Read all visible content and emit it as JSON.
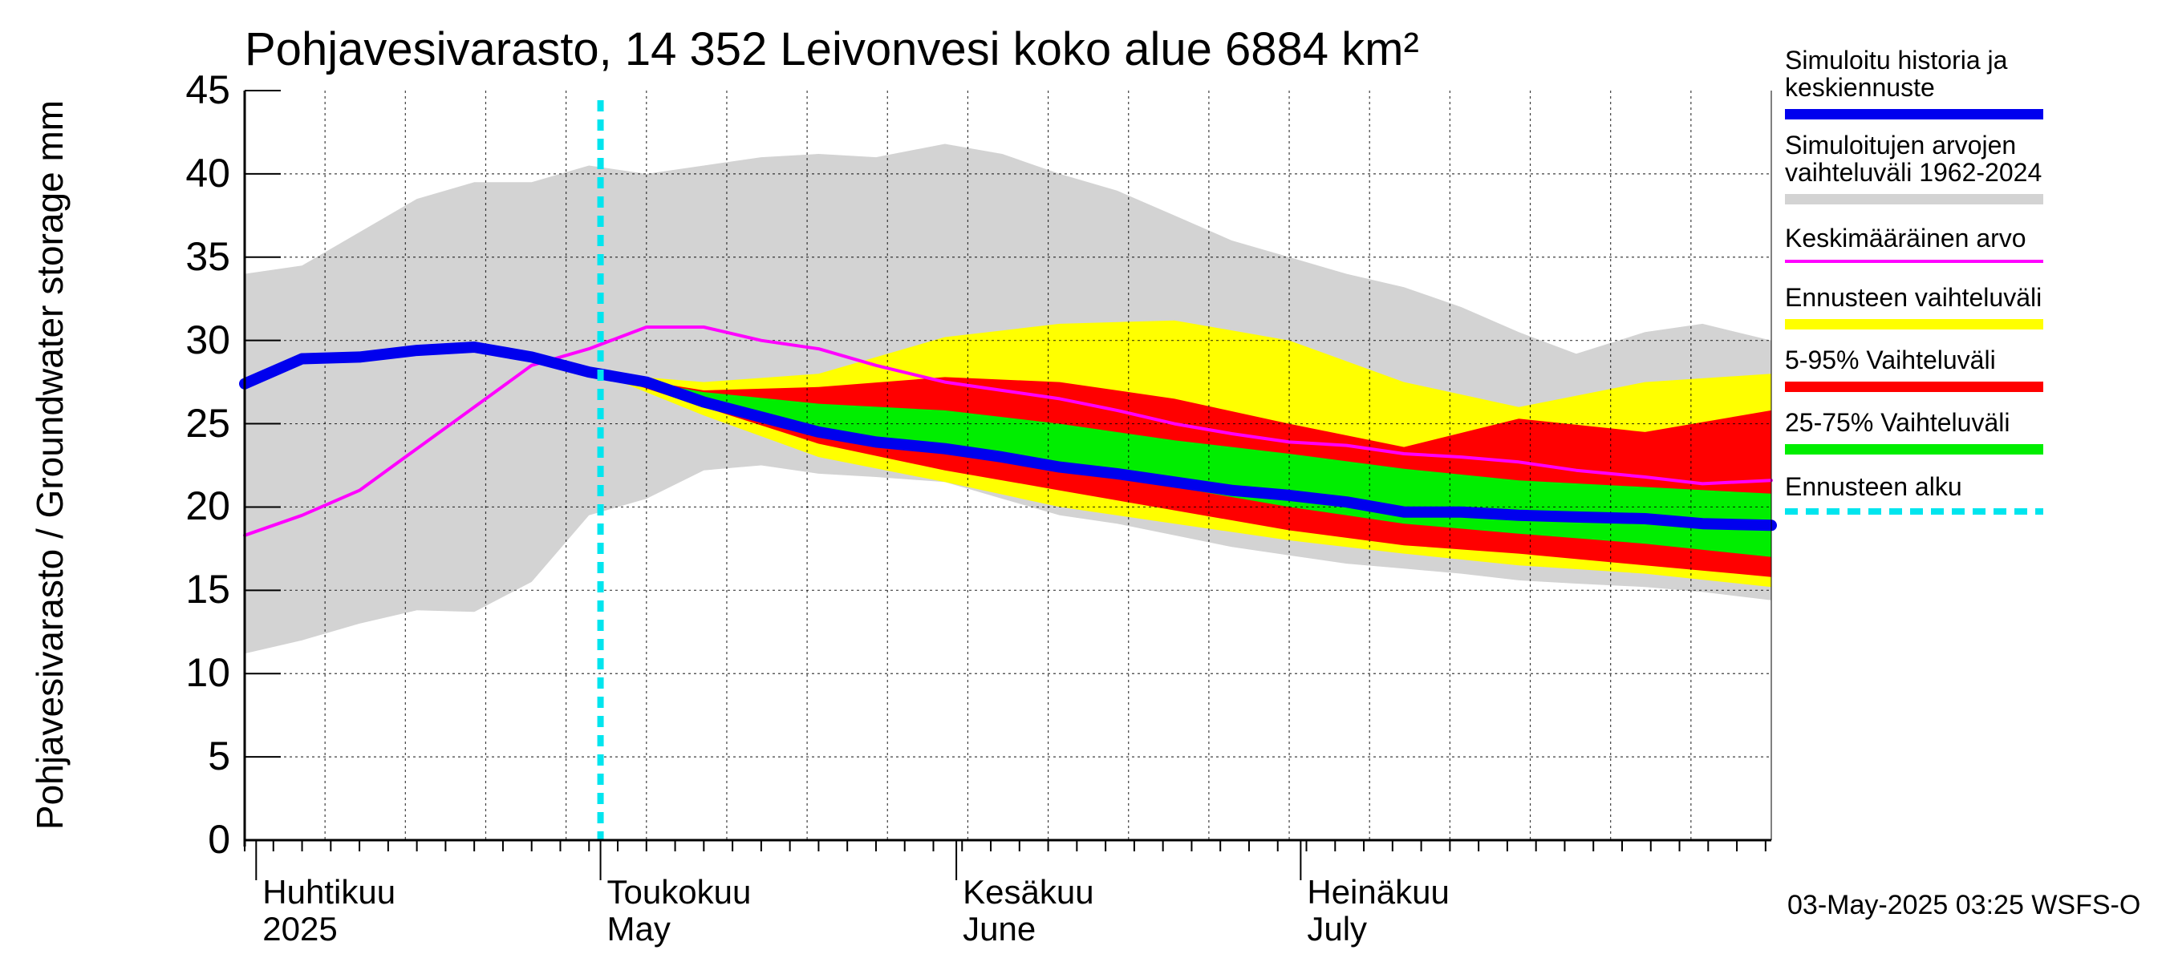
{
  "chart_data": {
    "type": "area",
    "title": "Pohjavesivarasto, 14 352 Leivonvesi koko alue 6884 km²",
    "ylabel": "Pohjavesivarasto / Groundwater storage   mm",
    "ylim": [
      0,
      45
    ],
    "yticks": [
      "0",
      "5",
      "10",
      "15",
      "20",
      "25",
      "30",
      "35",
      "40",
      "45"
    ],
    "x_start": "2025-03-31",
    "x_end": "2025-08-11",
    "forecast_start": "2025-05-01",
    "month_labels": [
      {
        "date": "2025-04-01",
        "fi": "Huhtikuu",
        "en": "2025"
      },
      {
        "date": "2025-05-01",
        "fi": "Toukokuu",
        "en": "May"
      },
      {
        "date": "2025-06-01",
        "fi": "Kesäkuu",
        "en": "June"
      },
      {
        "date": "2025-07-01",
        "fi": "Heinäkuu",
        "en": "July"
      }
    ],
    "history_range": {
      "dates": [
        "2025-03-31",
        "2025-04-05",
        "2025-04-10",
        "2025-04-15",
        "2025-04-20",
        "2025-04-25",
        "2025-04-30",
        "2025-05-05",
        "2025-05-10",
        "2025-05-15",
        "2025-05-20",
        "2025-05-25",
        "2025-05-31",
        "2025-06-05",
        "2025-06-10",
        "2025-06-15",
        "2025-06-20",
        "2025-06-25",
        "2025-06-30",
        "2025-07-05",
        "2025-07-10",
        "2025-07-15",
        "2025-07-20",
        "2025-07-25",
        "2025-07-31",
        "2025-08-05",
        "2025-08-11"
      ],
      "low": [
        11.2,
        12.0,
        13.0,
        13.8,
        13.7,
        15.5,
        19.5,
        20.5,
        22.2,
        22.5,
        22.0,
        21.8,
        21.5,
        20.5,
        19.5,
        19.0,
        18.3,
        17.6,
        17.1,
        16.6,
        16.3,
        16.0,
        15.6,
        15.4,
        15.2,
        14.9,
        14.4
      ],
      "high": [
        34.0,
        34.5,
        36.5,
        38.5,
        39.5,
        39.5,
        40.5,
        40.0,
        40.5,
        41.0,
        41.2,
        41.0,
        41.8,
        41.2,
        40.0,
        39.0,
        37.5,
        36.0,
        35.0,
        34.0,
        33.2,
        32.0,
        30.5,
        29.2,
        30.5,
        31.0,
        30.0
      ]
    },
    "forecast_range": {
      "dates": [
        "2025-05-01",
        "2025-05-10",
        "2025-05-20",
        "2025-05-31",
        "2025-06-10",
        "2025-06-20",
        "2025-06-30",
        "2025-07-10",
        "2025-07-20",
        "2025-07-31",
        "2025-08-11"
      ],
      "low": [
        28.0,
        25.5,
        23.0,
        21.5,
        20.0,
        19.0,
        18.0,
        17.2,
        16.5,
        16.0,
        15.2
      ],
      "high": [
        28.0,
        27.5,
        28.0,
        30.2,
        31.0,
        31.2,
        30.0,
        27.5,
        26.0,
        27.5,
        28.0
      ]
    },
    "p5_95_range": {
      "dates": [
        "2025-05-01",
        "2025-05-10",
        "2025-05-20",
        "2025-05-31",
        "2025-06-10",
        "2025-06-20",
        "2025-06-30",
        "2025-07-10",
        "2025-07-20",
        "2025-07-31",
        "2025-08-11"
      ],
      "low": [
        28.0,
        26.0,
        23.8,
        22.2,
        21.0,
        19.8,
        18.6,
        17.7,
        17.2,
        16.5,
        15.8
      ],
      "high": [
        28.0,
        27.0,
        27.2,
        27.8,
        27.5,
        26.5,
        25.0,
        23.6,
        25.3,
        24.5,
        25.8
      ]
    },
    "p25_75_range": {
      "dates": [
        "2025-05-01",
        "2025-05-10",
        "2025-05-20",
        "2025-05-31",
        "2025-06-10",
        "2025-06-20",
        "2025-06-30",
        "2025-07-10",
        "2025-07-20",
        "2025-07-31",
        "2025-08-11"
      ],
      "low": [
        28.0,
        26.6,
        24.8,
        23.4,
        22.2,
        21.2,
        20.0,
        19.0,
        18.4,
        17.8,
        17.0
      ],
      "high": [
        28.0,
        26.9,
        26.2,
        25.8,
        25.0,
        24.0,
        23.2,
        22.3,
        21.6,
        21.2,
        20.8
      ]
    },
    "mean_line": {
      "dates": [
        "2025-03-31",
        "2025-04-05",
        "2025-04-10",
        "2025-04-15",
        "2025-04-20",
        "2025-04-25",
        "2025-04-30",
        "2025-05-05",
        "2025-05-10",
        "2025-05-15",
        "2025-05-20",
        "2025-05-25",
        "2025-05-31",
        "2025-06-05",
        "2025-06-10",
        "2025-06-15",
        "2025-06-20",
        "2025-06-25",
        "2025-06-30",
        "2025-07-05",
        "2025-07-10",
        "2025-07-15",
        "2025-07-20",
        "2025-07-25",
        "2025-07-31",
        "2025-08-05",
        "2025-08-11"
      ],
      "values": [
        18.3,
        19.5,
        21.0,
        23.5,
        26.0,
        28.5,
        29.5,
        30.8,
        30.8,
        30.0,
        29.5,
        28.5,
        27.5,
        27.0,
        26.5,
        25.8,
        25.0,
        24.4,
        23.9,
        23.7,
        23.2,
        23.0,
        22.7,
        22.2,
        21.8,
        21.4,
        21.6
      ]
    },
    "simulated_line": {
      "dates": [
        "2025-03-31",
        "2025-04-05",
        "2025-04-10",
        "2025-04-15",
        "2025-04-20",
        "2025-04-25",
        "2025-04-30",
        "2025-05-05",
        "2025-05-10",
        "2025-05-15",
        "2025-05-20",
        "2025-05-25",
        "2025-05-31",
        "2025-06-05",
        "2025-06-10",
        "2025-06-15",
        "2025-06-20",
        "2025-06-25",
        "2025-06-30",
        "2025-07-05",
        "2025-07-10",
        "2025-07-15",
        "2025-07-20",
        "2025-07-25",
        "2025-07-31",
        "2025-08-05",
        "2025-08-11"
      ],
      "values": [
        27.4,
        28.9,
        29.0,
        29.4,
        29.6,
        29.0,
        28.1,
        27.5,
        26.3,
        25.4,
        24.5,
        23.9,
        23.5,
        23.0,
        22.4,
        22.0,
        21.5,
        21.0,
        20.7,
        20.3,
        19.7,
        19.7,
        19.5,
        19.4,
        19.3,
        19.0,
        18.9
      ]
    },
    "colors": {
      "history": "#d3d3d3",
      "forecast": "#ffff00",
      "p5_95": "#ff0000",
      "p25_75": "#00ee00",
      "mean": "#ff00ff",
      "simulated": "#0000ee",
      "forecast_start": "#00e5ee"
    },
    "legend": [
      {
        "label": "Simuloitu historia ja keskiennuste",
        "color": "#0000ee",
        "style": "solid"
      },
      {
        "label": "Simuloitujen arvojen vaihteluväli 1962-2024",
        "color": "#d3d3d3",
        "style": "solid"
      },
      {
        "label": "Keskimääräinen arvo",
        "color": "#ff00ff",
        "style": "thin"
      },
      {
        "label": "Ennusteen vaihteluväli",
        "color": "#ffff00",
        "style": "solid"
      },
      {
        "label": "5-95% Vaihteluväli",
        "color": "#ff0000",
        "style": "solid"
      },
      {
        "label": "25-75% Vaihteluväli",
        "color": "#00ee00",
        "style": "solid"
      },
      {
        "label": "Ennusteen alku",
        "color": "#00e5ee",
        "style": "dashed"
      }
    ],
    "grid": true,
    "legend_placement": "right"
  },
  "footer": {
    "timestamp": "03-May-2025 03:25 WSFS-O"
  }
}
